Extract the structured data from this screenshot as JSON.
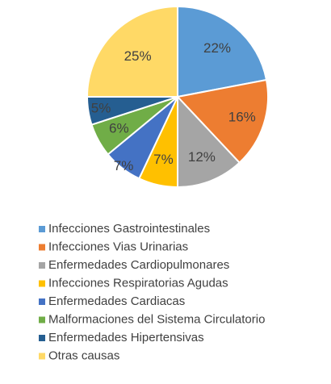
{
  "chart_data": {
    "type": "pie",
    "categories": [
      "Infecciones Gastrointestinales",
      "Infecciones Vias Urinarias",
      "Enfermedades Cardiopulmonares",
      "Infecciones Respiratorias Agudas",
      "Enfermedades Cardiacas",
      "Malformaciones del Sistema Circulatorio",
      "Enfermedades Hipertensivas",
      "Otras causas"
    ],
    "values": [
      22,
      16,
      12,
      7,
      7,
      6,
      5,
      25
    ],
    "value_labels": [
      "22%",
      "16%",
      "12%",
      "7%",
      "7%",
      "6%",
      "5%",
      "25%"
    ],
    "colors": [
      "#5b9bd5",
      "#ed7d31",
      "#a5a5a5",
      "#ffc000",
      "#4472c4",
      "#70ad47",
      "#255e91",
      "#ffd966"
    ],
    "legend": "bottom"
  }
}
